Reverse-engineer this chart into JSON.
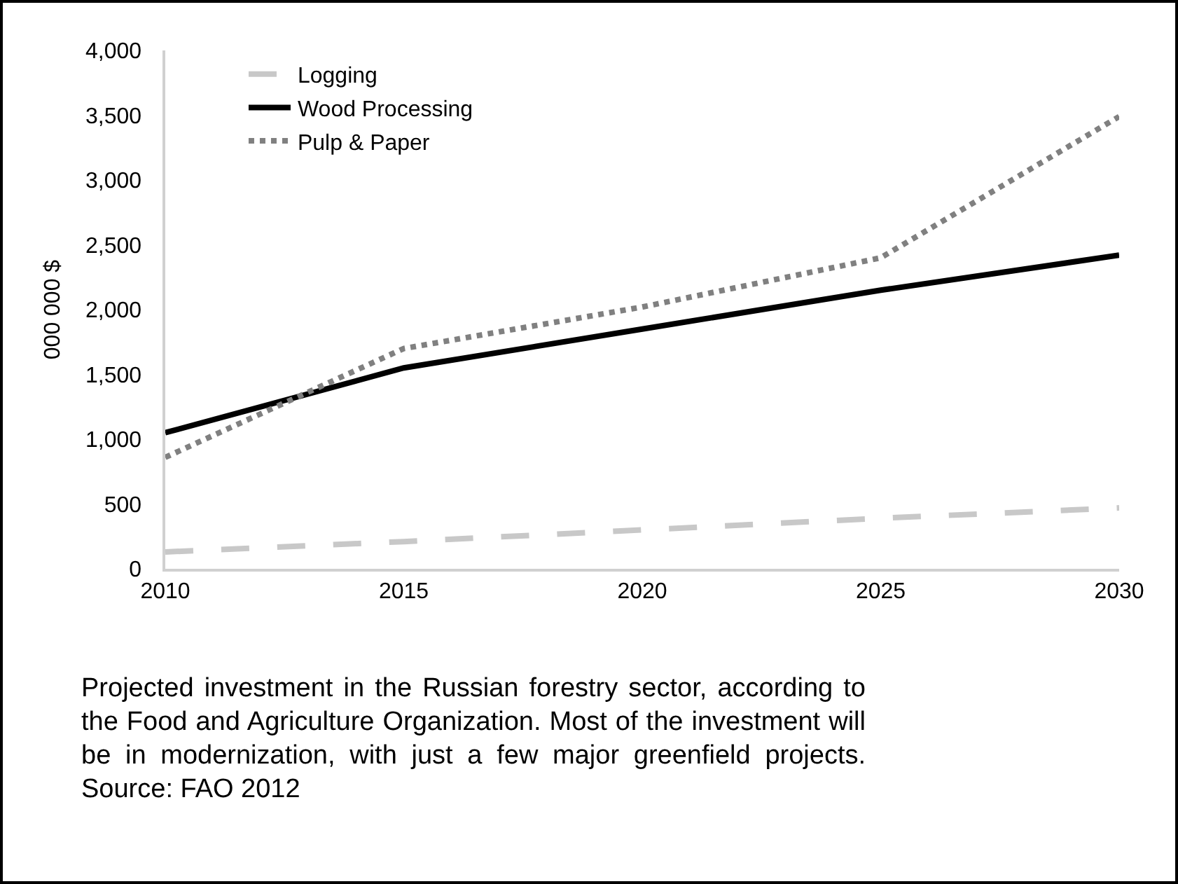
{
  "chart_data": {
    "type": "line",
    "ylabel": "000 000 $",
    "x": [
      2010,
      2015,
      2020,
      2025,
      2030
    ],
    "xlim": [
      2010,
      2030
    ],
    "xticks": [
      2010,
      2015,
      2020,
      2025,
      2030
    ],
    "ylim": [
      0,
      4000
    ],
    "yticks": [
      {
        "value": 0,
        "label": "0"
      },
      {
        "value": 500,
        "label": "500"
      },
      {
        "value": 1000,
        "label": "1,000"
      },
      {
        "value": 1500,
        "label": "1,500"
      },
      {
        "value": 2000,
        "label": "2,000"
      },
      {
        "value": 2500,
        "label": "2,500"
      },
      {
        "value": 3000,
        "label": "3,000"
      },
      {
        "value": 3500,
        "label": "3,500"
      },
      {
        "value": 4000,
        "label": "4,000"
      }
    ],
    "grid": false,
    "legend": "top left",
    "marker": "none",
    "series": [
      {
        "name": "Logging",
        "color": "#c8c8c8",
        "line_style": "dashed",
        "values": [
          130,
          210,
          300,
          390,
          470
        ]
      },
      {
        "name": "Wood Processing",
        "color": "#000000",
        "line_style": "solid",
        "values": [
          1050,
          1550,
          1850,
          2150,
          2420
        ]
      },
      {
        "name": "Pulp & Paper",
        "color": "#808080",
        "line_style": "dotted",
        "values": [
          860,
          1700,
          2020,
          2400,
          3490
        ]
      }
    ],
    "annotations": [
      "Projected investment in the Russian forestry sector, according to the Food and Agriculture Organization. Most of the investment will be in modernization, with just a few major greenfield projects. Source: FAO 2012"
    ]
  }
}
